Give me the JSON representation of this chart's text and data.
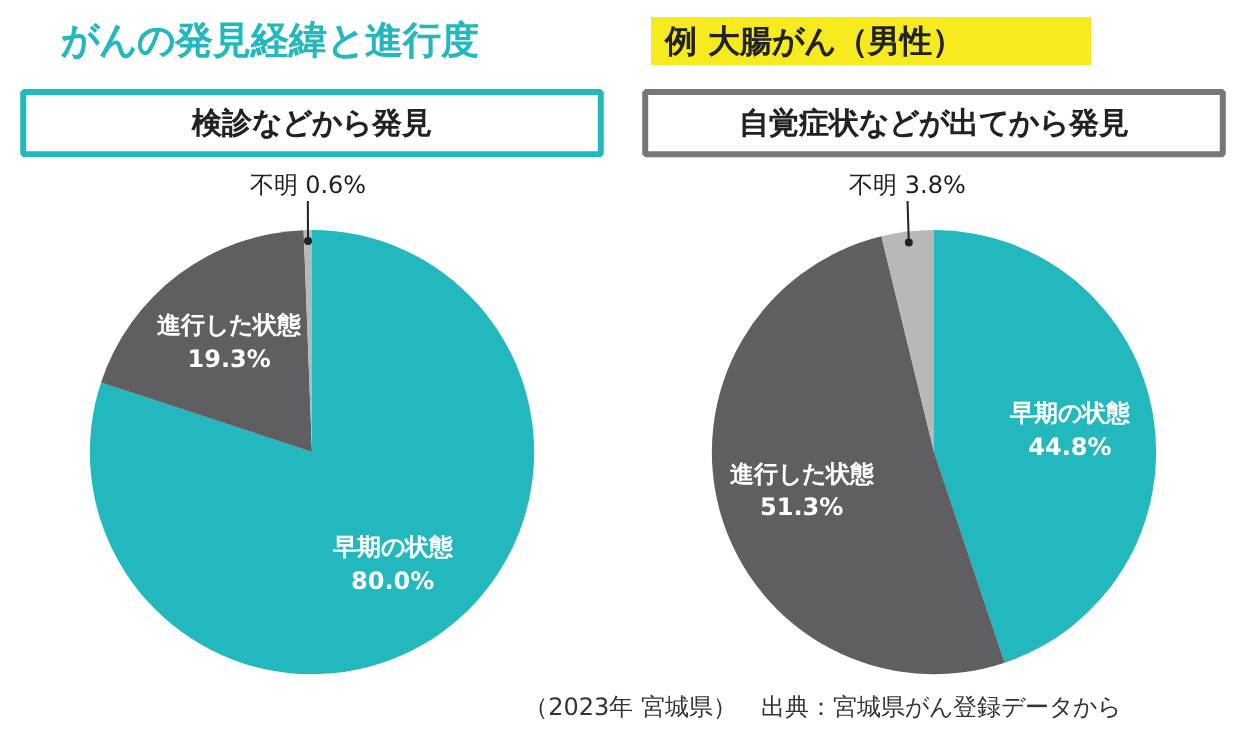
{
  "chart_data": [
    {
      "type": "other",
      "title": "がんの発見経緯と進行度",
      "subtitle": "例 大腸がん（男性）",
      "annotations": [
        "（2023年 宮城県）　出典：宮城県がん登録データから"
      ]
    },
    {
      "type": "pie",
      "title": "検診などから発見",
      "categories": [
        "早期の状態",
        "進行した状態",
        "不明"
      ],
      "values": [
        80.0,
        19.3,
        0.6
      ],
      "value_labels": [
        "80.0%",
        "19.3%",
        "0.6%"
      ],
      "colors": [
        "#22b8bd",
        "#5f5f61",
        "#b8b8b8"
      ]
    },
    {
      "type": "pie",
      "title": "自覚症状などが出てから発見",
      "categories": [
        "早期の状態",
        "進行した状態",
        "不明"
      ],
      "values": [
        44.8,
        51.3,
        3.8
      ],
      "value_labels": [
        "44.8%",
        "51.3%",
        "3.8%"
      ],
      "colors": [
        "#22b8bd",
        "#5f5f61",
        "#b8b8b8"
      ]
    }
  ]
}
